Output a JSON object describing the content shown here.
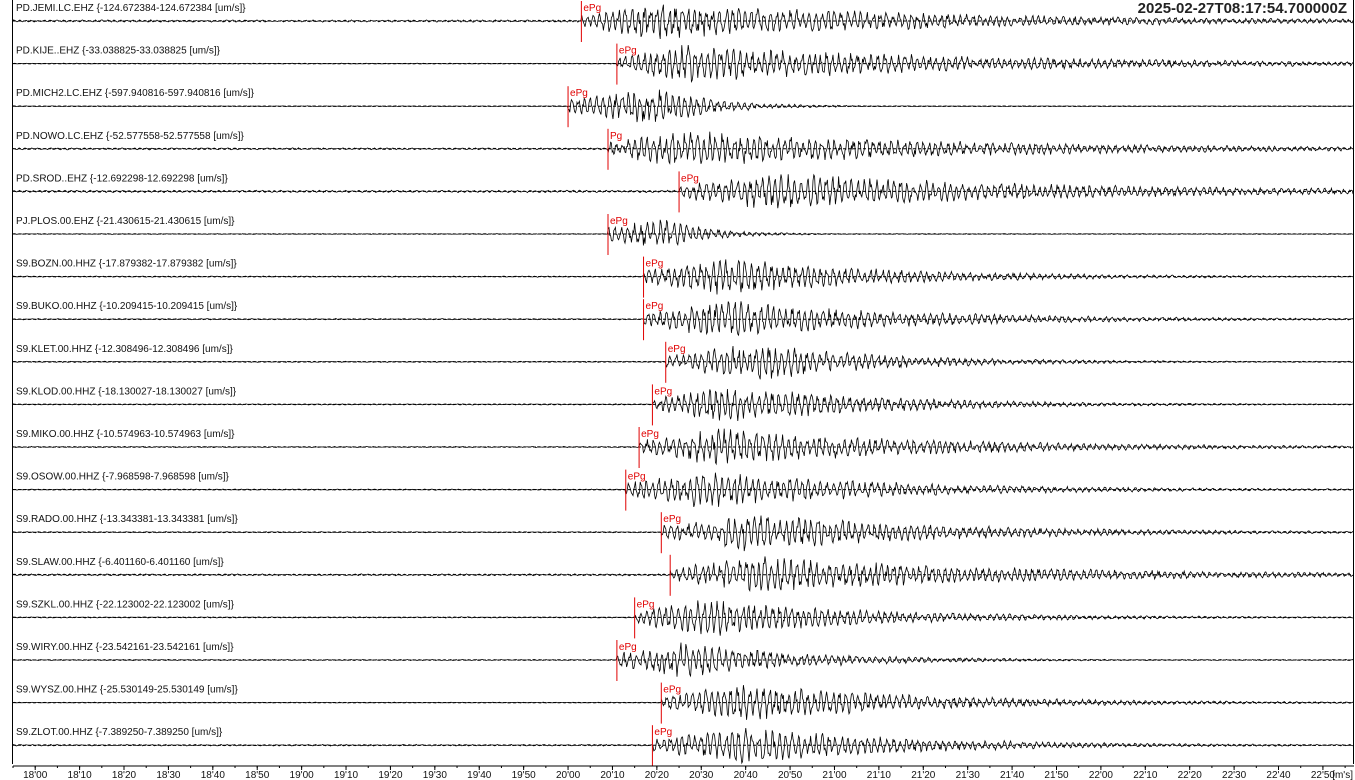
{
  "timestamp": "2025-02-27T08:17:54.700000Z",
  "colors": {
    "trace": "#000000",
    "pick": "#e00000",
    "baseline": "#000000",
    "background": "#ffffff"
  },
  "chart_data": {
    "type": "line",
    "x_unit_label": "[m's]",
    "xlim": [
      "17:55",
      "22:57"
    ],
    "x_ticks": [
      "18'00",
      "18'10",
      "18'20",
      "18'30",
      "18'40",
      "18'50",
      "19'00",
      "19'10",
      "19'20",
      "19'30",
      "19'40",
      "19'50",
      "20'00",
      "20'10",
      "20'20",
      "20'30",
      "20'40",
      "20'50",
      "21'00",
      "21'10",
      "21'20",
      "21'30",
      "21'40",
      "21'50",
      "22'00",
      "22'10",
      "22'20",
      "22'30",
      "22'40",
      "22'50"
    ],
    "traces": [
      {
        "label": "PD.JEMI.LC.EHZ {-124.672384-124.672384 [um/s]}",
        "pick": "ePg",
        "pick_time": "20'03",
        "peak_time": "20'20",
        "noise": 0.06,
        "duration": 2.6
      },
      {
        "label": "PD.KIJE..EHZ {-33.038825-33.038825 [um/s]}",
        "pick": "ePg",
        "pick_time": "20'11",
        "peak_time": "20'27",
        "noise": 0.02,
        "duration": 2.6
      },
      {
        "label": "PD.MICH2.LC.EHZ {-597.940816-597.940816 [um/s]}",
        "pick": "ePg",
        "pick_time": "20'00",
        "peak_time": "20'20",
        "noise": 0.02,
        "duration": 0.5
      },
      {
        "label": "PD.NOWO.LC.EHZ {-52.577558-52.577558 [um/s]}",
        "pick": "Pg",
        "pick_time": "20'09",
        "peak_time": "20'25",
        "noise": 0.05,
        "duration": 2.6
      },
      {
        "label": "PD.SROD..EHZ {-12.692298-12.692298 [um/s]}",
        "pick": "ePg",
        "pick_time": "20'25",
        "peak_time": "20'45",
        "noise": 0.06,
        "duration": 2.6
      },
      {
        "label": "PJ.PLOS.00.EHZ {-21.430615-21.430615 [um/s]}",
        "pick": "ePg",
        "pick_time": "20'09",
        "peak_time": "20'20",
        "noise": 0.02,
        "duration": 0.4
      },
      {
        "label": "S9.BOZN.00.HHZ {-17.879382-17.879382 [um/s]}",
        "pick": "ePg",
        "pick_time": "20'17",
        "peak_time": "20'35",
        "noise": 0.03,
        "duration": 1.5
      },
      {
        "label": "S9.BUKO.00.HHZ {-10.209415-10.209415 [um/s]}",
        "pick": "ePg",
        "pick_time": "20'17",
        "peak_time": "20'35",
        "noise": 0.03,
        "duration": 1.7
      },
      {
        "label": "S9.KLET.00.HHZ {-12.308496-12.308496 [um/s]}",
        "pick": "ePg",
        "pick_time": "20'22",
        "peak_time": "20'42",
        "noise": 0.03,
        "duration": 1.2
      },
      {
        "label": "S9.KLOD.00.HHZ {-18.130027-18.130027 [um/s]}",
        "pick": "ePg",
        "pick_time": "20'19",
        "peak_time": "20'36",
        "noise": 0.03,
        "duration": 1.4
      },
      {
        "label": "S9.MIKO.00.HHZ {-10.574963-10.574963 [um/s]}",
        "pick": "ePg",
        "pick_time": "20'16",
        "peak_time": "20'35",
        "noise": 0.03,
        "duration": 1.9
      },
      {
        "label": "S9.OSOW.00.HHZ {-7.968598-7.968598 [um/s]}",
        "pick": "ePg",
        "pick_time": "20'13",
        "peak_time": "20'30",
        "noise": 0.03,
        "duration": 1.7
      },
      {
        "label": "S9.RADO.00.HHZ {-13.343381-13.343381 [um/s]}",
        "pick": "ePg",
        "pick_time": "20'21",
        "peak_time": "20'40",
        "noise": 0.03,
        "duration": 1.8
      },
      {
        "label": "S9.SLAW.00.HHZ {-6.401160-6.401160 [um/s]}",
        "pick": "",
        "pick_time": "20'23",
        "peak_time": "20'43",
        "noise": 0.05,
        "duration": 2.3
      },
      {
        "label": "S9.SZKL.00.HHZ {-22.123002-22.123002 [um/s]}",
        "pick": "ePg",
        "pick_time": "20'15",
        "peak_time": "20'32",
        "noise": 0.03,
        "duration": 1.5
      },
      {
        "label": "S9.WIRY.00.HHZ {-23.542161-23.542161 [um/s]}",
        "pick": "ePg",
        "pick_time": "20'11",
        "peak_time": "20'25",
        "noise": 0.03,
        "duration": 1.1
      },
      {
        "label": "S9.WYSZ.00.HHZ {-25.530149-25.530149 [um/s]}",
        "pick": "ePg",
        "pick_time": "20'21",
        "peak_time": "20'40",
        "noise": 0.02,
        "duration": 1.6
      },
      {
        "label": "S9.ZLOT.00.HHZ {-7.389250-7.389250 [um/s]}",
        "pick": "ePg",
        "pick_time": "20'19",
        "peak_time": "20'40",
        "noise": 0.04,
        "duration": 1.5
      }
    ]
  }
}
